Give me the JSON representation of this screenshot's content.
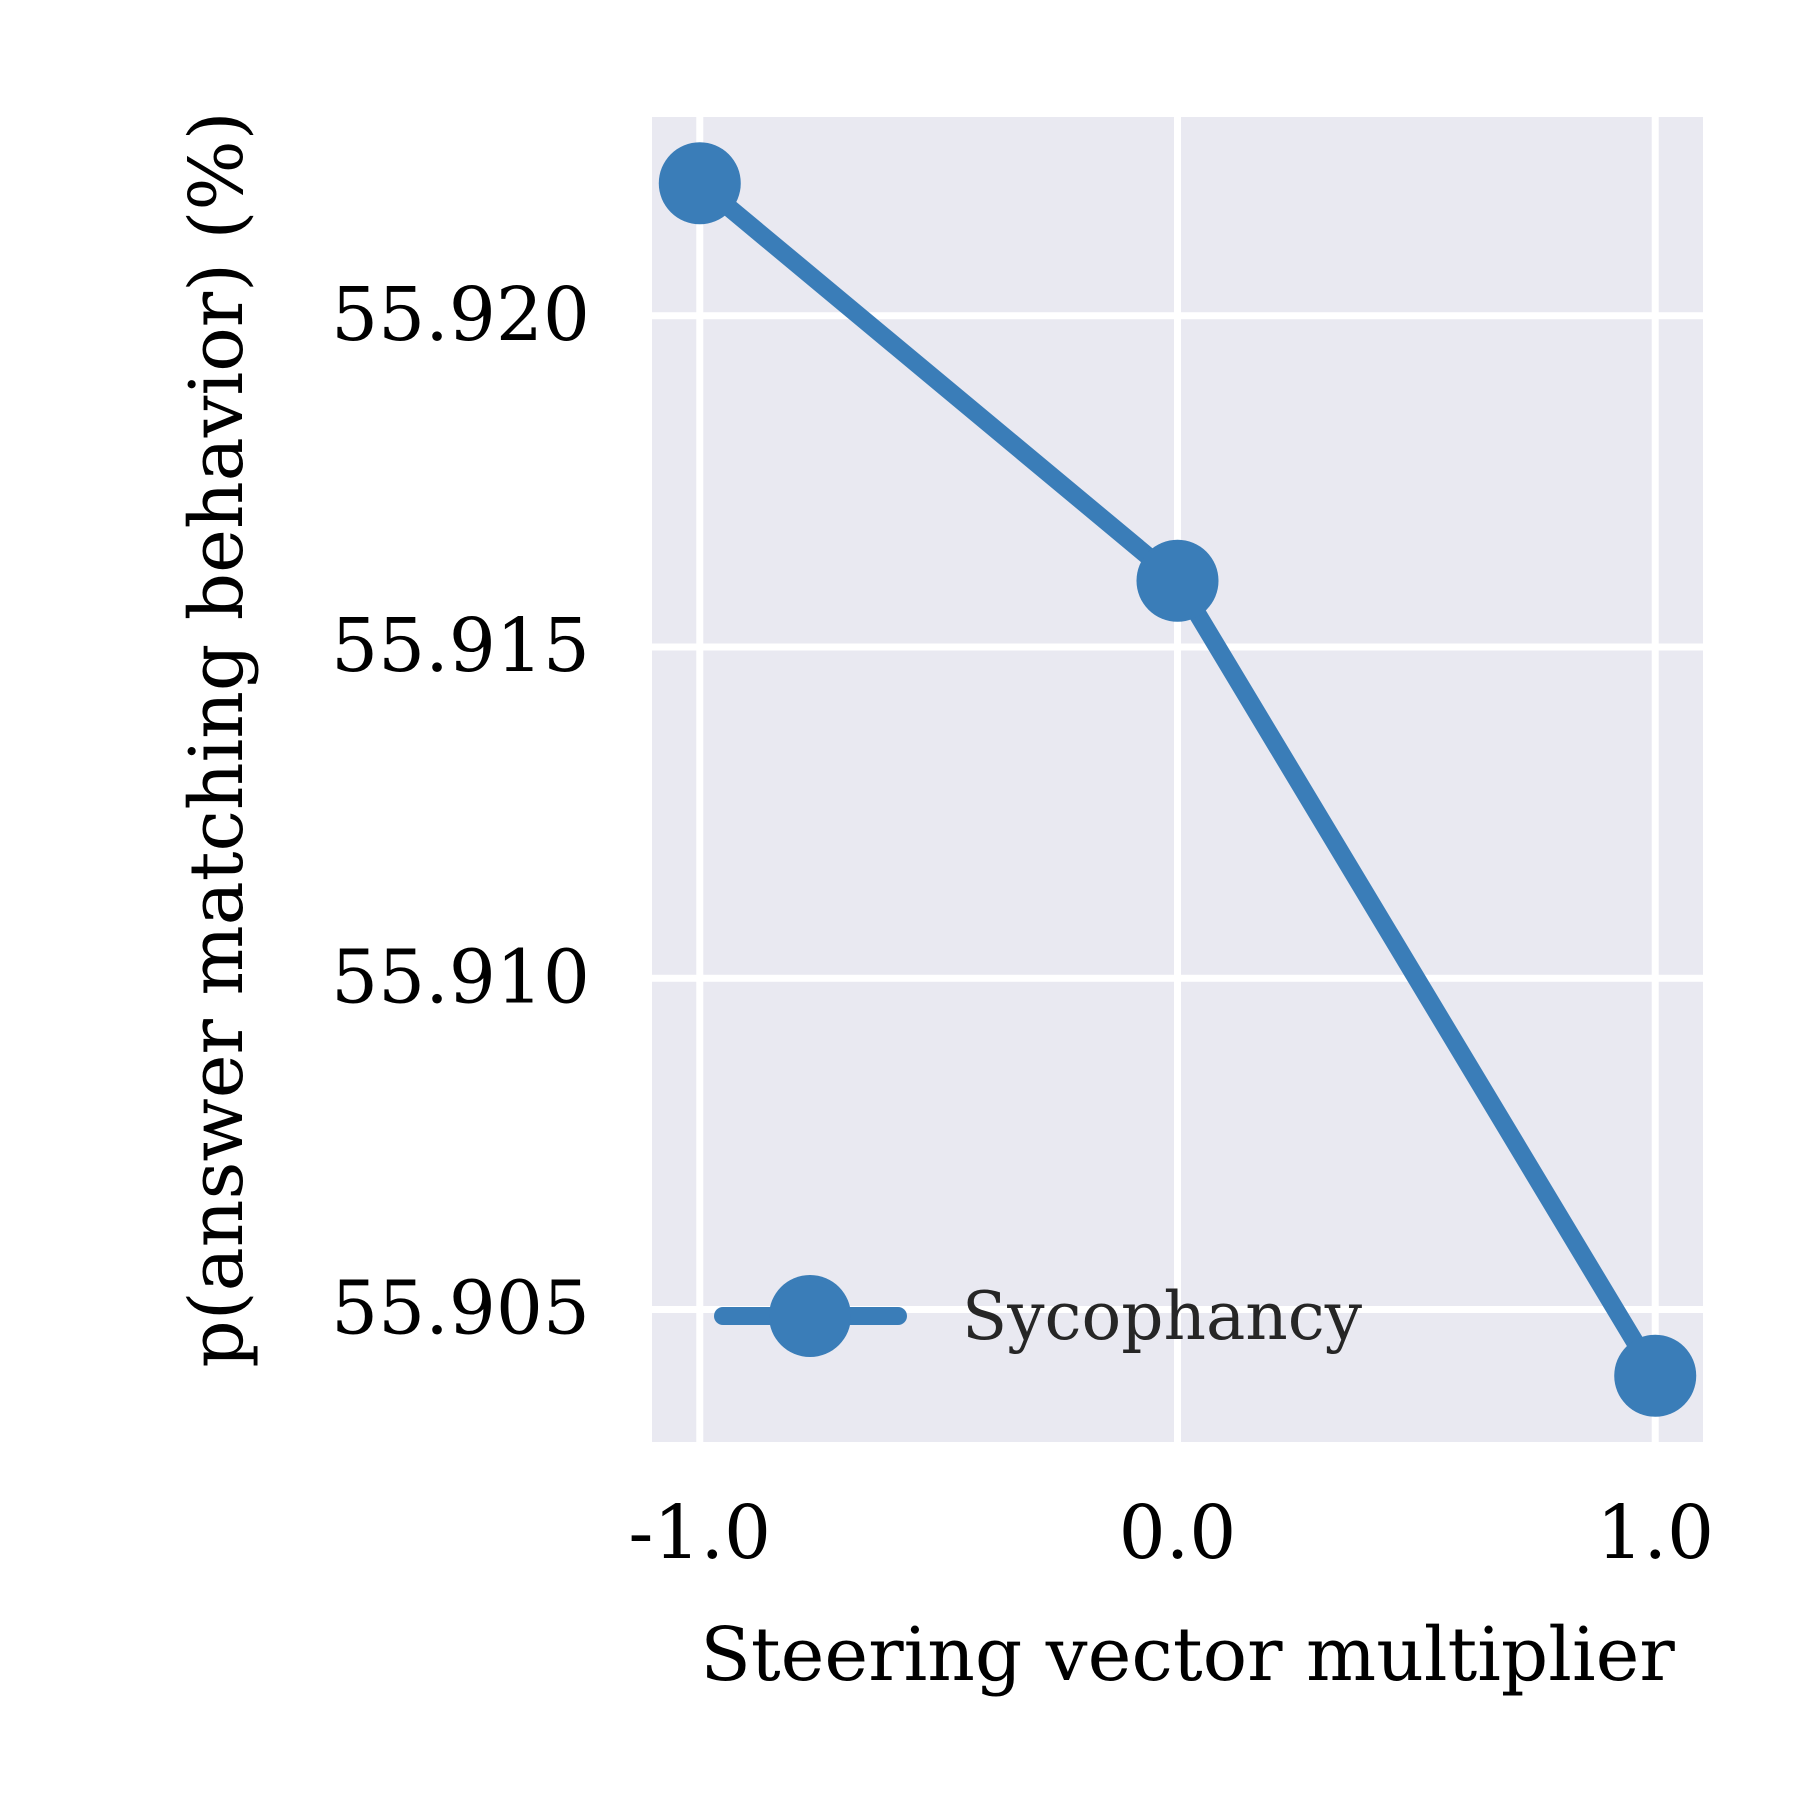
{
  "chart_data": {
    "type": "line",
    "title": "",
    "xlabel": "Steering vector multiplier",
    "ylabel": "p(answer matching behavior) (%)",
    "x": [
      -1.0,
      0.0,
      1.0
    ],
    "x_tick_labels": [
      "-1.0",
      "0.0",
      "1.0"
    ],
    "xlim": [
      -1.1,
      1.1
    ],
    "y_ticks": [
      55.905,
      55.91,
      55.915,
      55.92
    ],
    "y_tick_labels": [
      "55.905",
      "55.910",
      "55.915",
      "55.920"
    ],
    "ylim": [
      55.903,
      55.923
    ],
    "grid": true,
    "legend_position": "lower-left",
    "series": [
      {
        "name": "Sycophancy",
        "color": "#3a7db8",
        "marker": "circle",
        "values": [
          55.922,
          55.916,
          55.904
        ]
      }
    ],
    "background_color": "#e9e9f1",
    "grid_color": "#ffffff"
  }
}
